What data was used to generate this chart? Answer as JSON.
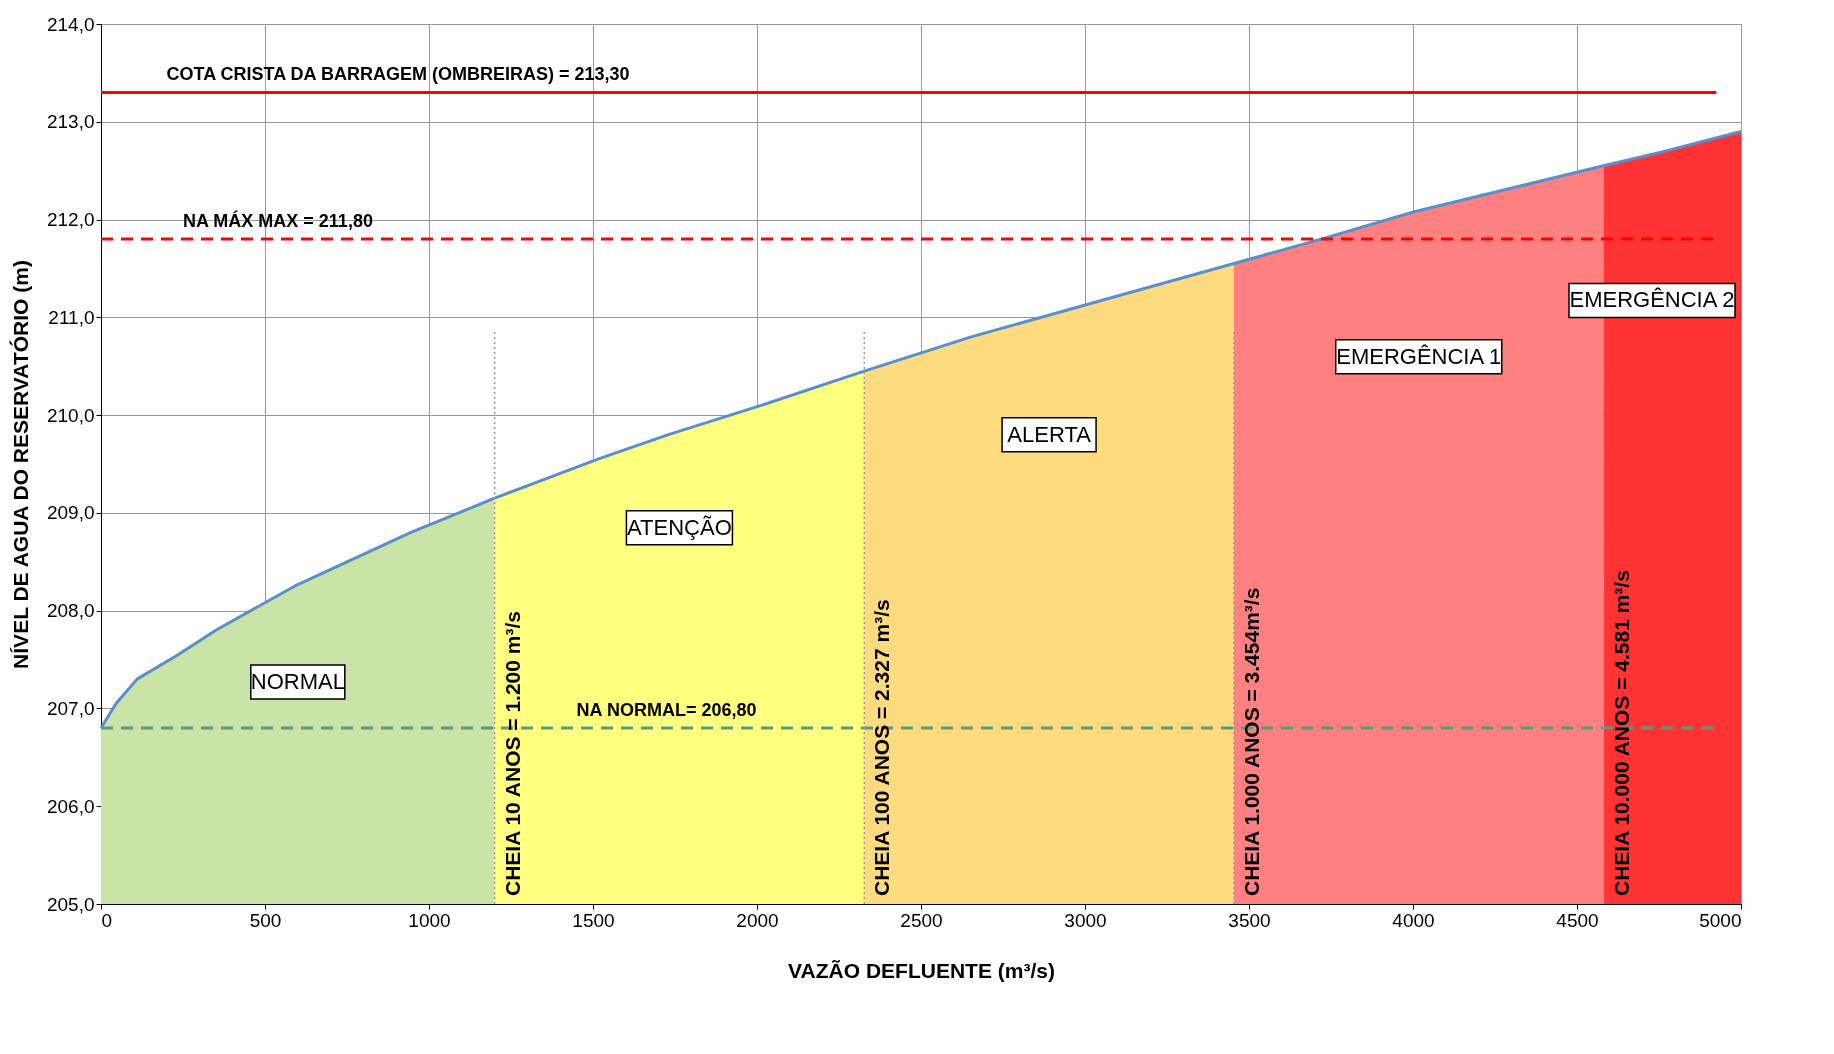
{
  "chart_data": {
    "type": "area",
    "xlabel": "VAZÃO DEFLUENTE (m³/s)",
    "ylabel": "NÍVEL DE AGUA DO RESERVATÓRIO (m)",
    "xlim": [
      0,
      5000
    ],
    "xticks": [
      0,
      500,
      1000,
      1500,
      2000,
      2500,
      3000,
      3500,
      4000,
      4500,
      5000
    ],
    "ylim": [
      205,
      214
    ],
    "yticks": [
      {
        "value": 205,
        "label": "205,0"
      },
      {
        "value": 206,
        "label": "206,0"
      },
      {
        "value": 207,
        "label": "207,0"
      },
      {
        "value": 208,
        "label": "208,0"
      },
      {
        "value": 209,
        "label": "209,0"
      },
      {
        "value": 210,
        "label": "210,0"
      },
      {
        "value": 211,
        "label": "211,0"
      },
      {
        "value": 212,
        "label": "212,0"
      },
      {
        "value": 213,
        "label": "213,0"
      },
      {
        "value": 214,
        "label": "214,0"
      }
    ],
    "grid": true,
    "legend": false,
    "marker": "none",
    "series": [
      {
        "name": "NORMAL",
        "color": "#c9e4a6",
        "x": [
          0,
          46,
          110,
          235,
          350,
          590,
          945,
          1200
        ],
        "values": [
          206.8,
          207.05,
          207.3,
          207.55,
          207.8,
          208.25,
          208.8,
          209.15
        ]
      },
      {
        "name": "ATENÇÃO",
        "color": "#ffff80",
        "x": [
          1200,
          1515,
          1730,
          2013,
          2327
        ],
        "values": [
          209.15,
          209.55,
          209.8,
          210.1,
          210.45
        ]
      },
      {
        "name": "ALERTA",
        "color": "#ffdb80",
        "x": [
          2327,
          2653,
          3080,
          3454
        ],
        "values": [
          210.45,
          210.8,
          211.2,
          211.55
        ]
      },
      {
        "name": "EMERGÊNCIA 1",
        "color": "#ff8080",
        "x": [
          3454,
          3720,
          4004,
          4581
        ],
        "values": [
          211.55,
          211.8,
          212.08,
          212.55
        ]
      },
      {
        "name": "EMERGÊNCIA 2",
        "color": "#ff3333",
        "x": [
          4581,
          4769,
          5000
        ],
        "values": [
          212.55,
          212.7,
          212.9
        ]
      },
      {
        "type": "line",
        "color": "#5b8fc9",
        "x": [
          0,
          46,
          110,
          235,
          350,
          590,
          945,
          1200,
          1515,
          1730,
          2013,
          2327,
          2653,
          3080,
          3454,
          3720,
          4004,
          4581,
          4769,
          5000
        ],
        "values": [
          206.8,
          207.05,
          207.3,
          207.55,
          207.8,
          208.25,
          208.8,
          209.15,
          209.55,
          209.8,
          210.1,
          210.45,
          210.8,
          211.2,
          211.55,
          211.8,
          212.08,
          212.55,
          212.7,
          212.9
        ]
      }
    ],
    "ref_lines": [
      {
        "axis": "y",
        "value": 213.3,
        "label": "COTA CRISTA DA BARRAGEM (OMBREIRAS) = 213,30",
        "color": "#ff0000",
        "line_style": "solid"
      },
      {
        "axis": "y",
        "value": 211.8,
        "label": "NA MÁX MAX = 211,80",
        "color": "#ff0000",
        "line_style": "dashed"
      },
      {
        "axis": "y",
        "value": 206.8,
        "label": "NA NORMAL= 206,80",
        "color": "#5a9a7a",
        "line_style": "dashed"
      },
      {
        "axis": "x",
        "value": 1200,
        "label": "CHEIA 10 ANOS = 1.200 m³/s",
        "color": "#999999",
        "line_style": "dotted"
      },
      {
        "axis": "x",
        "value": 2327,
        "label": "CHEIA 100 ANOS = 2.327 m³/s",
        "color": "#999999",
        "line_style": "dotted"
      },
      {
        "axis": "x",
        "value": 3454,
        "label": "CHEIA 1.000 ANOS = 3.454m³/s",
        "color": "#999999",
        "line_style": "dotted"
      },
      {
        "axis": "x",
        "value": 4581,
        "label": "CHEIA 10.000 ANOS = 4.581 m³/s",
        "color": "#999999",
        "line_style": "dotted"
      }
    ]
  }
}
